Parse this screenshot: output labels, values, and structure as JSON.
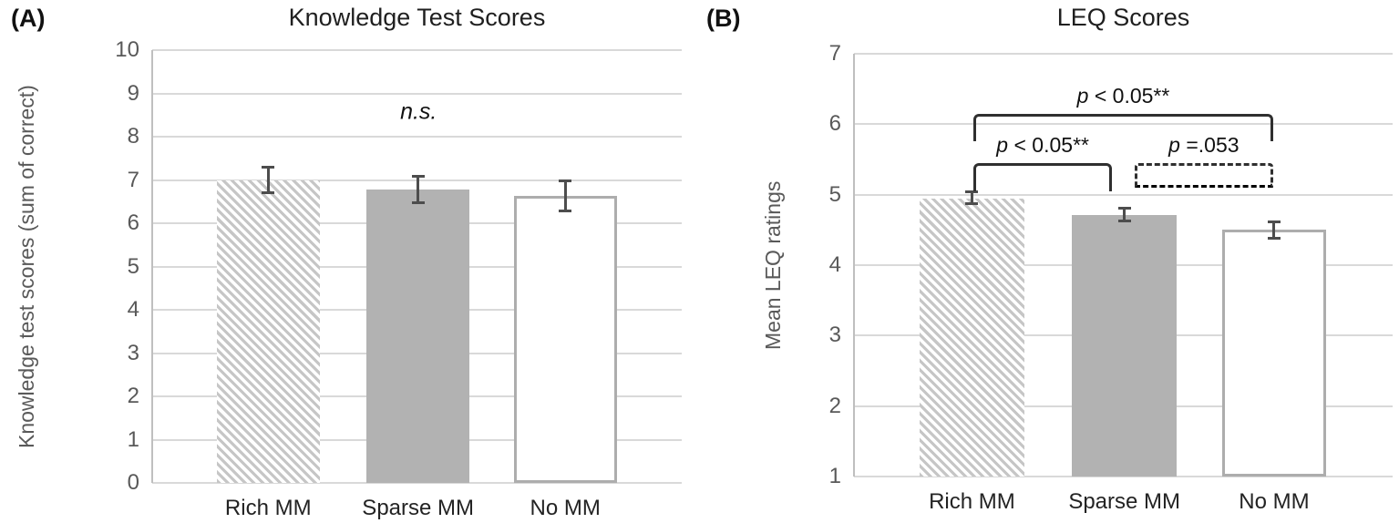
{
  "figure": {
    "panels": [
      {
        "letter": "(A)"
      },
      {
        "letter": "(B)"
      }
    ]
  },
  "colors": {
    "grid": "#d9d9d9",
    "axis": "#bfbfbf",
    "err": "#4d4d4d",
    "solid": "#b2b2b2",
    "hatch": "#c6c6c6",
    "outline": "#adadad",
    "bracket": "#2f2f2f",
    "tick": "#595959"
  },
  "chart_data": [
    {
      "type": "bar",
      "panel": "A",
      "title": "Knowledge Test Scores",
      "xlabel": "",
      "ylabel": "Knowledge test scores (sum of correct)",
      "ylim": [
        0,
        10
      ],
      "yticks": [
        0,
        1,
        2,
        3,
        4,
        5,
        6,
        7,
        8,
        9,
        10
      ],
      "grid": true,
      "legend": null,
      "categories": [
        "Rich MM",
        "Sparse MM",
        "No MM"
      ],
      "values": [
        7.0,
        6.78,
        6.63
      ],
      "error_low": [
        6.67,
        6.45,
        6.26
      ],
      "error_high": [
        7.32,
        7.11,
        7.01
      ],
      "bar_styles": [
        "hatched",
        "solid",
        "outlined"
      ],
      "annotation": {
        "text": "n.s.",
        "x_frac": 0.503,
        "y_value": 8.56
      },
      "brackets": [],
      "layout": {
        "bar_lefts": [
          0.122,
          0.405,
          0.683
        ],
        "bar_width": 0.194
      }
    },
    {
      "type": "bar",
      "panel": "B",
      "title": "LEQ Scores",
      "xlabel": "",
      "ylabel": "Mean LEQ ratings",
      "ylim": [
        1,
        7
      ],
      "yticks": [
        1,
        2,
        3,
        4,
        5,
        6,
        7
      ],
      "grid": true,
      "legend": null,
      "categories": [
        "Rich MM",
        "Sparse MM",
        "No MM"
      ],
      "values": [
        4.95,
        4.71,
        4.5
      ],
      "error_low": [
        4.85,
        4.61,
        4.36
      ],
      "error_high": [
        5.06,
        4.83,
        4.64
      ],
      "bar_styles": [
        "hatched",
        "solid",
        "outlined"
      ],
      "annotation": null,
      "brackets": [
        {
          "style": "solid",
          "x1_frac": 0.222,
          "x2_frac": 0.778,
          "y_value": 6.15,
          "end_value": 5.76,
          "label_p": "p",
          "label_rest": " < 0.05**"
        },
        {
          "style": "solid",
          "x1_frac": 0.222,
          "x2_frac": 0.479,
          "y_value": 5.45,
          "end_value": 5.05,
          "label_p": "p",
          "label_rest": " < 0.05**"
        },
        {
          "style": "dashed",
          "x1_frac": 0.521,
          "x2_frac": 0.778,
          "y_value": 5.45,
          "end_value": 5.1,
          "label_p": "p",
          "label_rest": " =.053"
        }
      ],
      "layout": {
        "bar_lefts": [
          0.122,
          0.405,
          0.683
        ],
        "bar_width": 0.194
      }
    }
  ]
}
